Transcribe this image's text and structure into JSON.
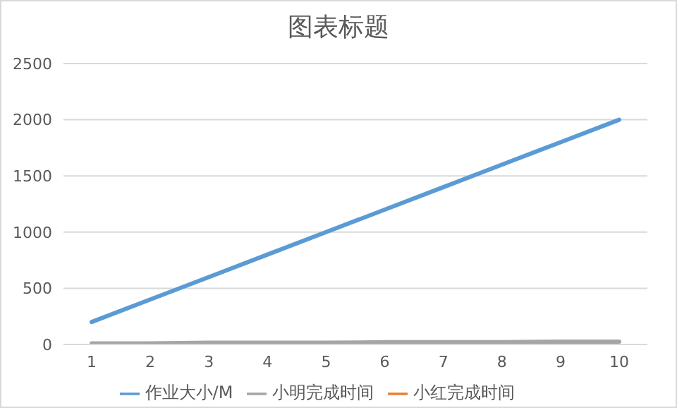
{
  "chart_data": {
    "type": "line",
    "title": "图表标题",
    "categories": [
      "1",
      "2",
      "3",
      "4",
      "5",
      "6",
      "7",
      "8",
      "9",
      "10"
    ],
    "series": [
      {
        "name": "作业大小/M",
        "color": "#5b9bd5",
        "values": [
          200,
          400,
          600,
          800,
          1000,
          1200,
          1400,
          1600,
          1800,
          2000
        ]
      },
      {
        "name": "小红完成时间",
        "color": "#ed7d31",
        "values": [
          null,
          null,
          null,
          null,
          null,
          null,
          null,
          null,
          null,
          null
        ]
      },
      {
        "name": "小明完成时间",
        "color": "#a5a5a5",
        "values": [
          10,
          10,
          15,
          15,
          15,
          20,
          20,
          20,
          25,
          25
        ]
      }
    ],
    "ylim": [
      0,
      2500
    ],
    "yticks": [
      0,
      500,
      1000,
      1500,
      2000,
      2500
    ],
    "grid": "y",
    "legend": "bottom",
    "marker": "none",
    "line_style": "solid"
  }
}
